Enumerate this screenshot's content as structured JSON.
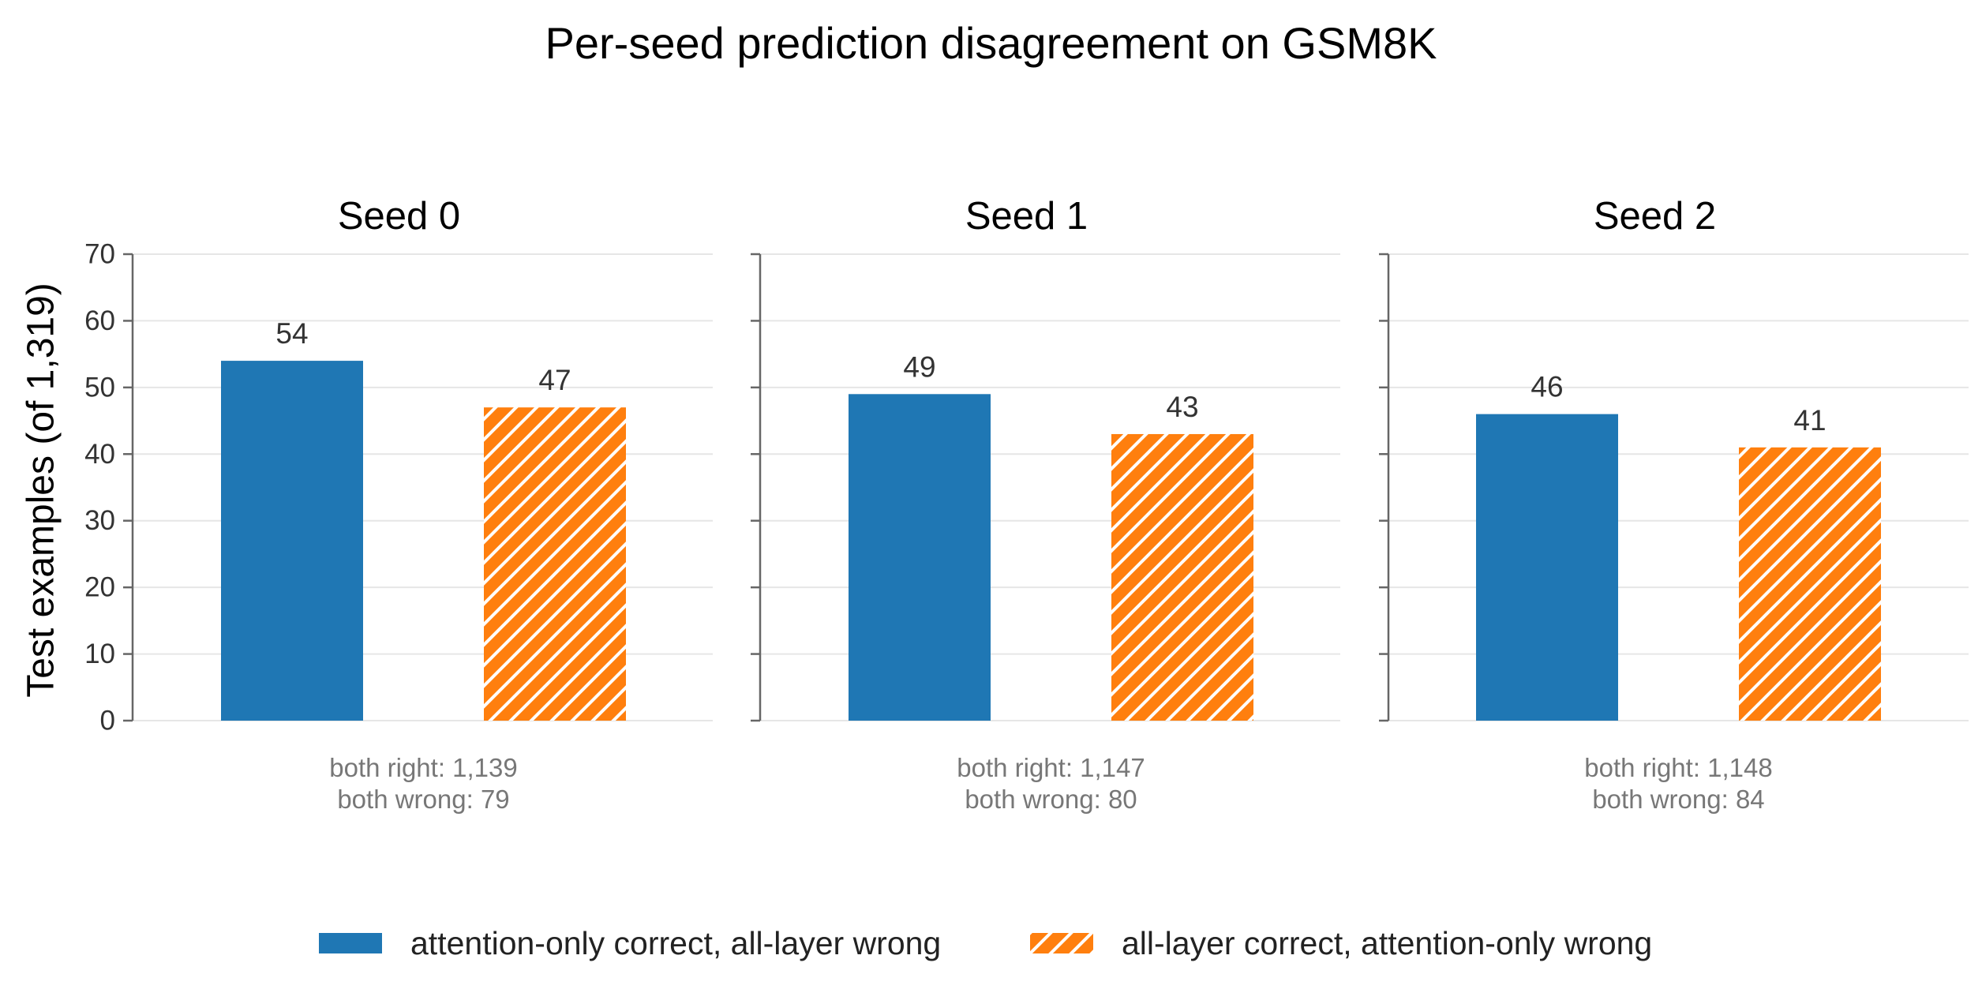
{
  "figure": {
    "title": "Per-seed prediction disagreement on GSM8K",
    "ylabel": "Test examples (of 1,319)"
  },
  "colors": {
    "attention_only": "#1f77b4",
    "all_layer": "#ff7f0e",
    "grid": "#e6e6e6",
    "axis": "#666666",
    "note_text": "#777777"
  },
  "legend": {
    "items": [
      {
        "label": "attention-only correct, all-layer wrong",
        "style": "solid-blue"
      },
      {
        "label": "all-layer correct, attention-only wrong",
        "style": "hatched-orange"
      }
    ]
  },
  "chart_data": {
    "type": "bar",
    "title": "Per-seed prediction disagreement on GSM8K",
    "ylabel": "Test examples (of 1,319)",
    "ylim": [
      0,
      70
    ],
    "yticks": [
      0,
      10,
      20,
      30,
      40,
      50,
      60,
      70
    ],
    "grid": true,
    "legend_position": "bottom-center",
    "series_names": [
      "attention-only correct, all-layer wrong",
      "all-layer correct, attention-only wrong"
    ],
    "panels": [
      {
        "title": "Seed 0",
        "values": [
          54,
          47
        ],
        "note": [
          "both right: 1,139",
          "both wrong: 79"
        ]
      },
      {
        "title": "Seed 1",
        "values": [
          49,
          43
        ],
        "note": [
          "both right: 1,147",
          "both wrong: 80"
        ]
      },
      {
        "title": "Seed 2",
        "values": [
          46,
          41
        ],
        "note": [
          "both right: 1,148",
          "both wrong: 84"
        ]
      }
    ]
  }
}
